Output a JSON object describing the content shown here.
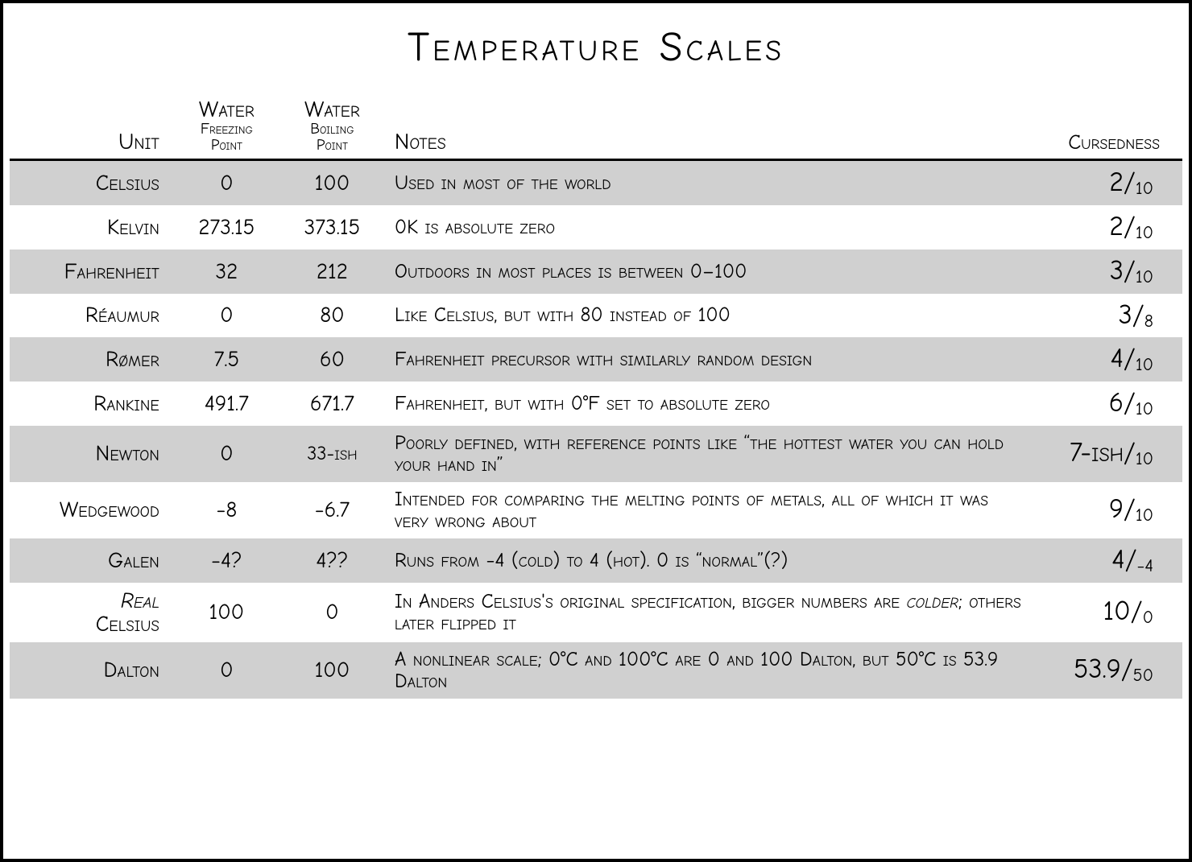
{
  "title": "Temperature Scales",
  "colors": {
    "background": "#ffffff",
    "row_shade": "#d0d0d0",
    "text": "#000000",
    "border": "#000000"
  },
  "colwidths_pct": [
    14,
    9,
    9,
    55,
    13
  ],
  "headers": {
    "unit": "Unit",
    "freezing_top": "Water",
    "freezing_mid": "Freezing",
    "freezing_bot": "Point",
    "boiling_top": "Water",
    "boiling_mid": "Boiling",
    "boiling_bot": "Point",
    "notes": "Notes",
    "cursedness": "Cursedness"
  },
  "rows": [
    {
      "unit": "Celsius",
      "freezing": "0",
      "boiling": "100",
      "notes": "Used in most of the world",
      "cursed_num": "2",
      "cursed_den": "10"
    },
    {
      "unit": "Kelvin",
      "freezing": "273.15",
      "boiling": "373.15",
      "notes": "0K is absolute zero",
      "cursed_num": "2",
      "cursed_den": "10"
    },
    {
      "unit": "Fahrenheit",
      "freezing": "32",
      "boiling": "212",
      "notes": "Outdoors in most places is between 0–100",
      "cursed_num": "3",
      "cursed_den": "10"
    },
    {
      "unit": "Réaumur",
      "freezing": "0",
      "boiling": "80",
      "notes": "Like Celsius, but with 80 instead of 100",
      "cursed_num": "3",
      "cursed_den": "8"
    },
    {
      "unit": "Rømer",
      "freezing": "7.5",
      "boiling": "60",
      "notes": "Fahrenheit precursor with similarly random design",
      "cursed_num": "4",
      "cursed_den": "10"
    },
    {
      "unit": "Rankine",
      "freezing": "491.7",
      "boiling": "671.7",
      "notes": "Fahrenheit, but with 0°F set to absolute zero",
      "cursed_num": "6",
      "cursed_den": "10"
    },
    {
      "unit": "Newton",
      "freezing": "0",
      "boiling": "33-ish",
      "boiling_small": true,
      "notes": "Poorly defined, with reference points like “the hottest water you can hold your hand in”",
      "cursed_num": "7-ish",
      "cursed_den": "10"
    },
    {
      "unit": "Wedgewood",
      "freezing": "−8",
      "boiling": "−6.7",
      "notes": "Intended for comparing the melting points of metals, all of which it was very wrong about",
      "cursed_num": "9",
      "cursed_den": "10"
    },
    {
      "unit": "Galen",
      "freezing": "−4?",
      "boiling": "4??",
      "notes": "Runs from −4 (cold) to 4 (hot). 0 is “normal”(?)",
      "cursed_num": "4",
      "cursed_den": "−4"
    },
    {
      "unit_html": "<span class=\"italic\">Real</span><br>Celsius",
      "unit": "Real Celsius",
      "freezing": "100",
      "boiling": "0",
      "notes_html": "In Anders Celsius's original specification, bigger numbers are <span class=\"italic\">colder</span>; others later flipped it",
      "notes": "In Anders Celsius's original specification, bigger numbers are colder; others later flipped it",
      "cursed_num": "10",
      "cursed_den": "0"
    },
    {
      "unit": "Dalton",
      "freezing": "0",
      "boiling": "100",
      "notes": "A nonlinear scale; 0°C and 100°C are 0 and 100 Dalton, but 50°C is 53.9 Dalton",
      "cursed_num": "53.9",
      "cursed_den": "50"
    }
  ]
}
